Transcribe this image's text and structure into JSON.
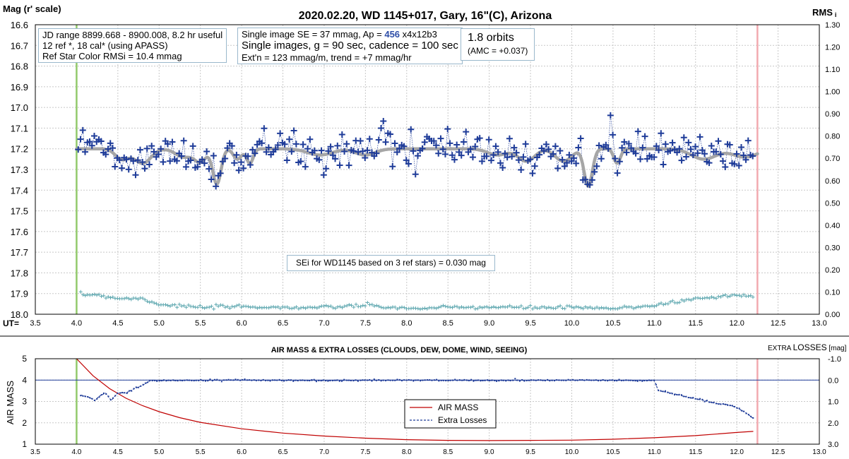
{
  "header": {
    "title": "2020.02.20, WD 1145+017, Gary, 16\"(C), Arizona",
    "left_axis_label": "Mag (r' scale)",
    "right_axis_label": "RMS",
    "right_axis_sub": "i",
    "x_axis_label": "UT="
  },
  "info_box_1": {
    "line1": "JD range 8899.668 - 8900.008, 8.2 hr useful",
    "line2": "12 ref *, 18 cal* (using APASS)",
    "line3": "Ref Star Color RMSi = 10.4 mmag"
  },
  "info_box_2": {
    "line1_prefix": "Single image SE = 37 mmag, Ap = ",
    "line1_ap": "456",
    "line1_suffix": " x4x12b3",
    "line2": "Single images, g = 90 sec, cadence = 100 sec",
    "line3": "Ext'n = 123 mmag/m, trend = +7 mmag/hr"
  },
  "info_box_3": {
    "line1": "1.8 orbits",
    "line2": "(AMC = +0.037)"
  },
  "sei_note": "SEi for WD1145 based on 3 ref stars) = 0.030 mag",
  "lower_panel": {
    "title": "AIR MASS & EXTRA LOSSES (CLOUDS, DEW, DOME, WIND, SEEING)",
    "left_axis_label": "AIR MASS",
    "right_axis_label_small1": "EXTRA ",
    "right_axis_label_big": "LOSSES",
    "right_axis_label_small2": " [mag]",
    "legend_airmass": "AIR MASS",
    "legend_losses": "Extra Losses"
  },
  "colors": {
    "data_points": "#1f3c99",
    "model_curve": "#a6a6a6",
    "rms_points": "#5fa8b0",
    "start_line": "#92c96b",
    "end_line": "#f2aab0",
    "air_mass": "#c00000",
    "extra_losses": "#1f3c99",
    "zero_line": "#1f3c99"
  },
  "chart_data": [
    {
      "type": "scatter",
      "name": "upper",
      "xlim": [
        3.5,
        13.0
      ],
      "ylim": [
        18.0,
        16.6
      ],
      "y2lim": [
        0.0,
        1.3
      ],
      "x_ticks": [
        "3.5",
        "4.0",
        "4.5",
        "5.0",
        "5.5",
        "6.0",
        "6.5",
        "7.0",
        "7.5",
        "8.0",
        "8.5",
        "9.0",
        "9.5",
        "10.0",
        "10.5",
        "11.0",
        "11.5",
        "12.0",
        "12.5",
        "13.0"
      ],
      "y_ticks": [
        "16.6",
        "16.7",
        "16.8",
        "16.9",
        "17.0",
        "17.1",
        "17.2",
        "17.3",
        "17.4",
        "17.5",
        "17.6",
        "17.7",
        "17.8",
        "17.9",
        "18.0"
      ],
      "y2_ticks": [
        "1.30",
        "1.20",
        "1.10",
        "1.00",
        "0.90",
        "0.80",
        "0.70",
        "0.60",
        "0.50",
        "0.40",
        "0.30",
        "0.20",
        "0.10",
        "0.00"
      ],
      "grid": true,
      "start_ut": 4.0,
      "end_ut": 12.25,
      "baseline_mag": 17.2,
      "dips": [
        {
          "center": 4.55,
          "depth": 0.05,
          "width": 0.08
        },
        {
          "center": 4.8,
          "depth": 0.07,
          "width": 0.1
        },
        {
          "center": 5.3,
          "depth": 0.04,
          "width": 0.1
        },
        {
          "center": 5.5,
          "depth": 0.06,
          "width": 0.07
        },
        {
          "center": 5.7,
          "depth": 0.17,
          "width": 0.05
        },
        {
          "center": 5.95,
          "depth": 0.05,
          "width": 0.05
        },
        {
          "center": 6.1,
          "depth": 0.07,
          "width": 0.04
        },
        {
          "center": 6.95,
          "depth": 0.03,
          "width": 0.15
        },
        {
          "center": 7.5,
          "depth": 0.03,
          "width": 0.12
        },
        {
          "center": 9.1,
          "depth": 0.03,
          "width": 0.12
        },
        {
          "center": 9.45,
          "depth": 0.06,
          "width": 0.1
        },
        {
          "center": 9.9,
          "depth": 0.06,
          "width": 0.1
        },
        {
          "center": 10.2,
          "depth": 0.18,
          "width": 0.05
        },
        {
          "center": 10.55,
          "depth": 0.07,
          "width": 0.04
        },
        {
          "center": 11.6,
          "depth": 0.05,
          "width": 0.15
        },
        {
          "center": 12.1,
          "depth": 0.04,
          "width": 0.15
        }
      ],
      "rms_profile": [
        [
          4.05,
          0.085
        ],
        [
          4.2,
          0.09
        ],
        [
          4.5,
          0.072
        ],
        [
          4.8,
          0.07
        ],
        [
          5.0,
          0.045
        ],
        [
          5.5,
          0.03
        ],
        [
          6.0,
          0.035
        ],
        [
          6.5,
          0.03
        ],
        [
          7.0,
          0.03
        ],
        [
          7.5,
          0.04
        ],
        [
          8.0,
          0.025
        ],
        [
          8.5,
          0.03
        ],
        [
          9.0,
          0.032
        ],
        [
          9.5,
          0.03
        ],
        [
          10.0,
          0.03
        ],
        [
          10.5,
          0.025
        ],
        [
          11.0,
          0.04
        ],
        [
          11.5,
          0.07
        ],
        [
          12.0,
          0.085
        ],
        [
          12.2,
          0.08
        ]
      ]
    },
    {
      "type": "line",
      "name": "lower",
      "xlim": [
        3.5,
        13.0
      ],
      "ylim": [
        1,
        5
      ],
      "y2lim": [
        3.0,
        -1.0
      ],
      "x_ticks": [
        "3.5",
        "4.0",
        "4.5",
        "5.0",
        "5.5",
        "6.0",
        "6.5",
        "7.0",
        "7.5",
        "8.0",
        "8.5",
        "9.0",
        "9.5",
        "10.0",
        "10.5",
        "11.0",
        "11.5",
        "12.0",
        "12.5",
        "13.0"
      ],
      "y_ticks": [
        "5",
        "4",
        "3",
        "2",
        "1"
      ],
      "y2_ticks": [
        "-1.0",
        "0.0",
        "1.0",
        "2.0",
        "3.0"
      ],
      "grid": true,
      "air_mass": [
        [
          4.0,
          5.0
        ],
        [
          4.2,
          4.2
        ],
        [
          4.4,
          3.6
        ],
        [
          4.6,
          3.15
        ],
        [
          4.8,
          2.8
        ],
        [
          5.0,
          2.52
        ],
        [
          5.25,
          2.24
        ],
        [
          5.5,
          2.02
        ],
        [
          6.0,
          1.72
        ],
        [
          6.5,
          1.52
        ],
        [
          7.0,
          1.38
        ],
        [
          7.5,
          1.28
        ],
        [
          8.0,
          1.21
        ],
        [
          8.5,
          1.18
        ],
        [
          9.0,
          1.17
        ],
        [
          9.5,
          1.18
        ],
        [
          10.0,
          1.19
        ],
        [
          10.5,
          1.23
        ],
        [
          11.0,
          1.3
        ],
        [
          11.5,
          1.4
        ],
        [
          12.0,
          1.55
        ],
        [
          12.2,
          1.6
        ]
      ],
      "extra_losses": [
        [
          4.05,
          0.7
        ],
        [
          4.15,
          0.8
        ],
        [
          4.22,
          0.95
        ],
        [
          4.28,
          0.75
        ],
        [
          4.35,
          0.6
        ],
        [
          4.42,
          0.95
        ],
        [
          4.5,
          0.6
        ],
        [
          4.6,
          0.6
        ],
        [
          4.7,
          0.4
        ],
        [
          4.8,
          0.25
        ],
        [
          4.9,
          0.0
        ],
        [
          5.0,
          0.02
        ],
        [
          6.0,
          0.0
        ],
        [
          7.0,
          0.02
        ],
        [
          8.0,
          0.0
        ],
        [
          9.0,
          0.02
        ],
        [
          10.0,
          0.0
        ],
        [
          11.0,
          0.02
        ],
        [
          11.05,
          0.5
        ],
        [
          11.2,
          0.6
        ],
        [
          11.4,
          0.8
        ],
        [
          11.6,
          0.95
        ],
        [
          11.75,
          1.1
        ],
        [
          11.9,
          1.15
        ],
        [
          12.0,
          1.3
        ],
        [
          12.1,
          1.5
        ],
        [
          12.2,
          1.8
        ]
      ]
    }
  ]
}
